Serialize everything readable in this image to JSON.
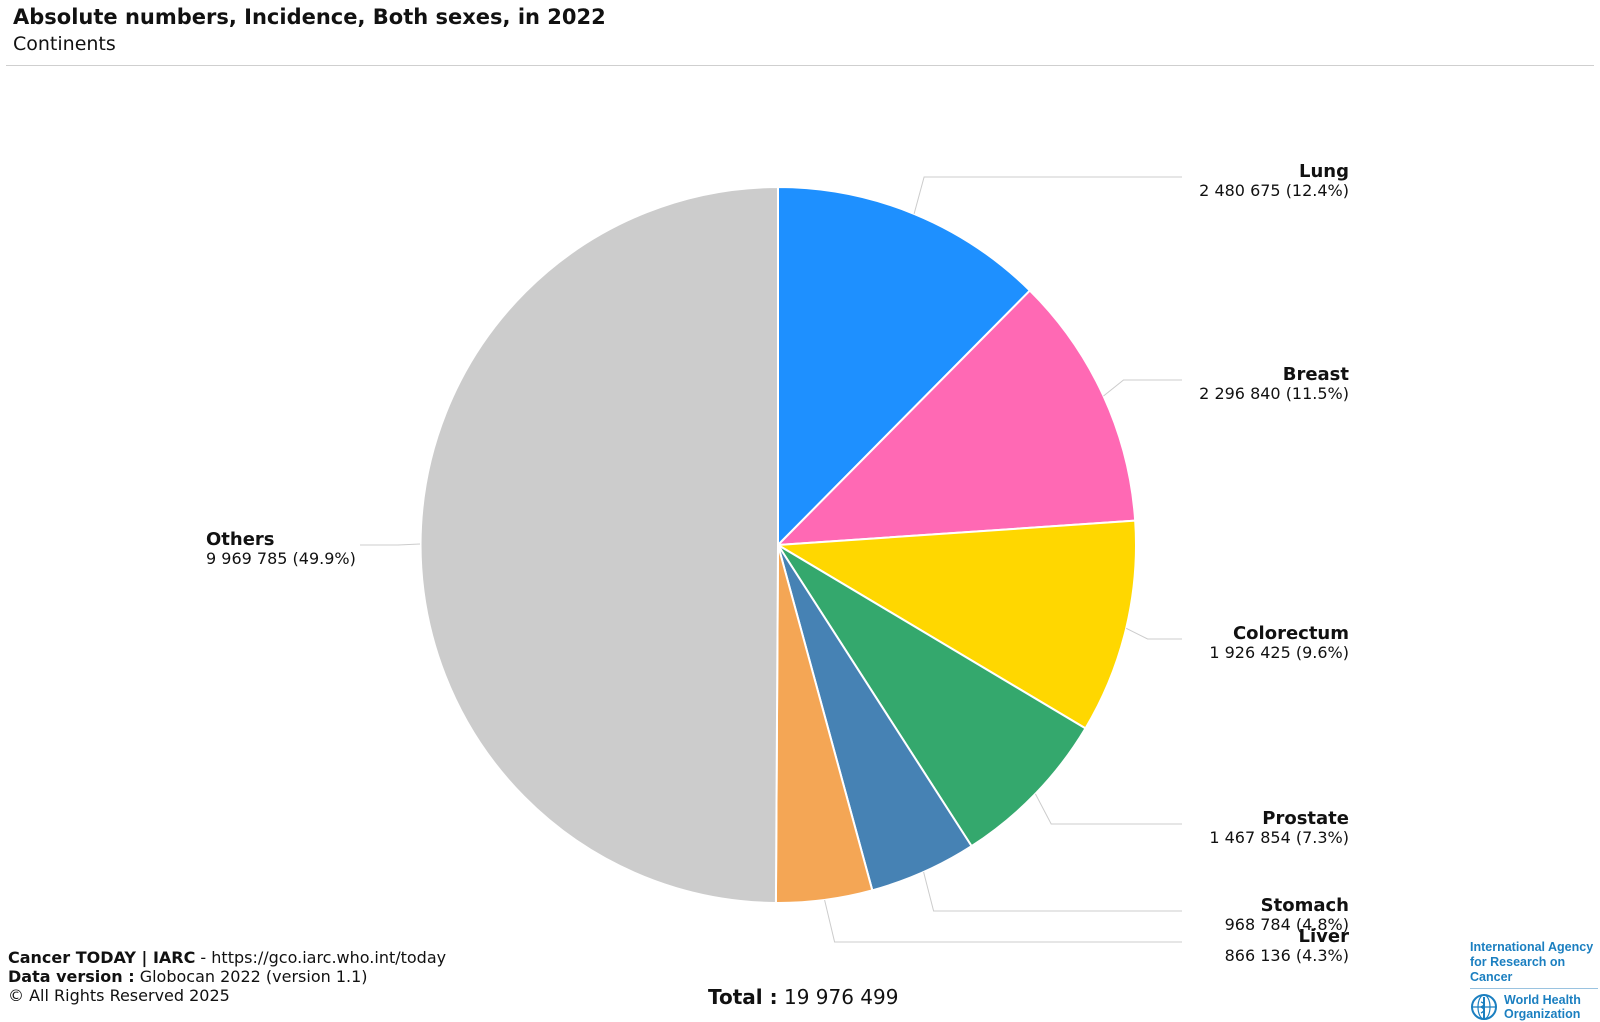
{
  "header": {
    "title": "Absolute numbers, Incidence, Both sexes, in 2022",
    "subtitle": "Continents"
  },
  "chart_data": {
    "type": "pie",
    "title": "Absolute numbers, Incidence, Both sexes, in 2022",
    "subtitle": "Continents",
    "slices": [
      {
        "name": "Lung",
        "value": 2480675,
        "value_label": "2 480 675 (12.4%)",
        "percent": 12.4,
        "color": "#1e90ff"
      },
      {
        "name": "Breast",
        "value": 2296840,
        "value_label": "2 296 840 (11.5%)",
        "percent": 11.5,
        "color": "#ff69b4"
      },
      {
        "name": "Colorectum",
        "value": 1926425,
        "value_label": "1 926 425 (9.6%)",
        "percent": 9.6,
        "color": "#ffd700"
      },
      {
        "name": "Prostate",
        "value": 1467854,
        "value_label": "1 467 854 (7.3%)",
        "percent": 7.3,
        "color": "#34a86d"
      },
      {
        "name": "Stomach",
        "value": 968784,
        "value_label": "968 784 (4.8%)",
        "percent": 4.8,
        "color": "#4682b4"
      },
      {
        "name": "Liver",
        "value": 866136,
        "value_label": "866 136 (4.3%)",
        "percent": 4.3,
        "color": "#f4a655"
      },
      {
        "name": "Others",
        "value": 9969785,
        "value_label": "9 969 785 (49.9%)",
        "percent": 49.9,
        "color": "#cccccc"
      }
    ],
    "total_label": "Total :",
    "total_value": "19 976 499"
  },
  "footer": {
    "source_bold": "Cancer TODAY | IARC",
    "source_rest": " - https://gco.iarc.who.int/today",
    "version_bold": "Data version :",
    "version_rest": " Globocan 2022 (version 1.1)",
    "copyright": "© All Rights Reserved 2025"
  },
  "logos": {
    "iarc_line1": "International Agency",
    "iarc_line2": "for Research on Cancer",
    "who_line1": "World Health",
    "who_line2": "Organization"
  }
}
